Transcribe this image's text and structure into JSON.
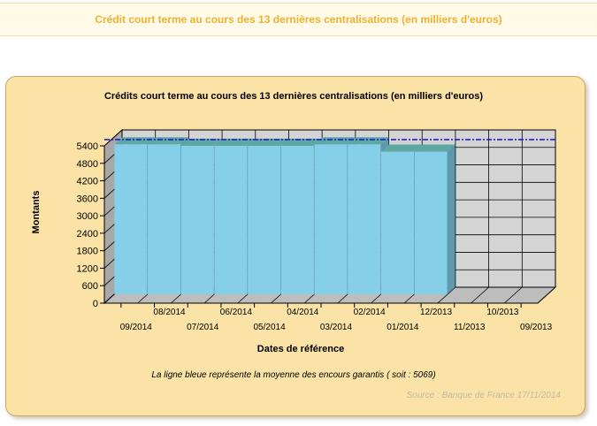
{
  "page": {
    "header_title": "Crédit court terme au cours des 13 dernières centralisations (en milliers d'euros)"
  },
  "chart_data": {
    "type": "bar",
    "title": "Crédits court terme au cours des 13 dernières centralisations (en milliers d'euros)",
    "xlabel": "Dates de référence",
    "ylabel": "Montants",
    "ylim": [
      0,
      5400
    ],
    "yticks": [
      0,
      600,
      1200,
      1800,
      2400,
      3000,
      3600,
      4200,
      4800,
      5400
    ],
    "categories": [
      "09/2014",
      "08/2014",
      "07/2014",
      "06/2014",
      "05/2014",
      "04/2014",
      "03/2014",
      "02/2014",
      "01/2014",
      "12/2013",
      "11/2013",
      "10/2013",
      "09/2013"
    ],
    "values": [
      5150,
      5150,
      5100,
      5100,
      5100,
      5100,
      5150,
      5150,
      4900,
      4900,
      null,
      null,
      null
    ],
    "average": 5069,
    "average_line_color": "#2020d0",
    "bar_color": "#85cfe9",
    "grid": true,
    "note": "La ligne bleue représente la moyenne des encours garantis ( soit : 5069)",
    "source": "Source : Banque de France 17/11/2014"
  }
}
